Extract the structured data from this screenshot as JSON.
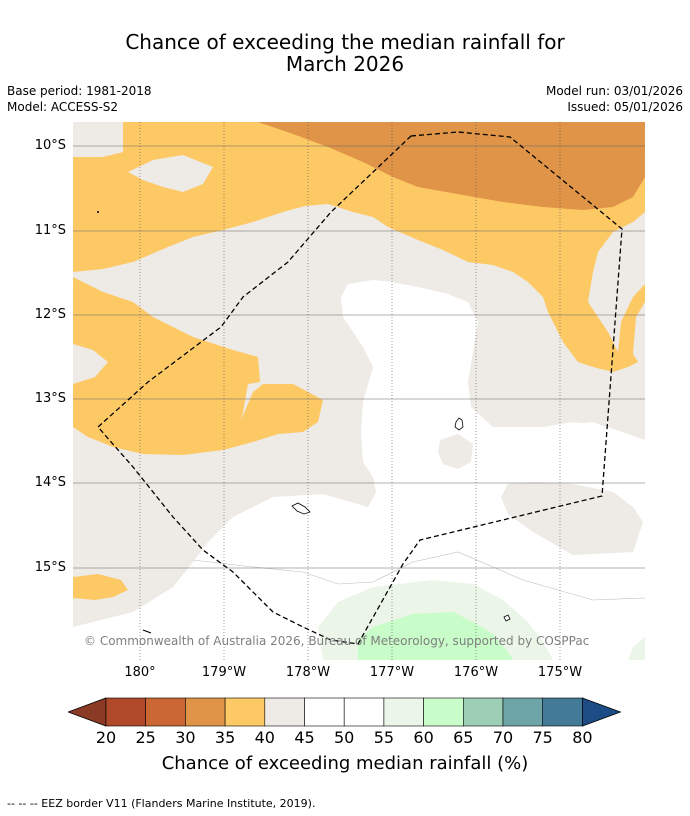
{
  "title_line1": "Chance of exceeding the median rainfall for",
  "title_line2": "March 2026",
  "base_period": "Base period: 1981-2018",
  "model": "Model: ACCESS-S2",
  "model_run": "Model run: 03/01/2026",
  "issued": "Issued: 05/01/2026",
  "lat_labels": [
    "10°S",
    "11°S",
    "12°S",
    "13°S",
    "14°S",
    "15°S"
  ],
  "lon_labels": [
    "180°",
    "179°W",
    "178°W",
    "177°W",
    "176°W",
    "175°W"
  ],
  "copyright": "© Commonwealth of Australia 2026, Bureau of Meteorology, supported by COSPPac",
  "colorbar": {
    "ticks": [
      "20",
      "25",
      "30",
      "35",
      "40",
      "45",
      "50",
      "55",
      "60",
      "65",
      "70",
      "75",
      "80"
    ],
    "label": "Chance of exceeding median rainfall (%)",
    "colors": [
      "#b0492a",
      "#cb6734",
      "#df9447",
      "#fdc965",
      "#eeeae5",
      "#ffffff",
      "#ffffff",
      "#ebf5e8",
      "#c8fcc9",
      "#9ccfb6",
      "#6ca4a8",
      "#427a97"
    ],
    "under_color": "#8a3a25",
    "over_color": "#1c4e85"
  },
  "footer": "-- -- -- EEZ border V11 (Flanders Marine Institute, 2019)."
}
